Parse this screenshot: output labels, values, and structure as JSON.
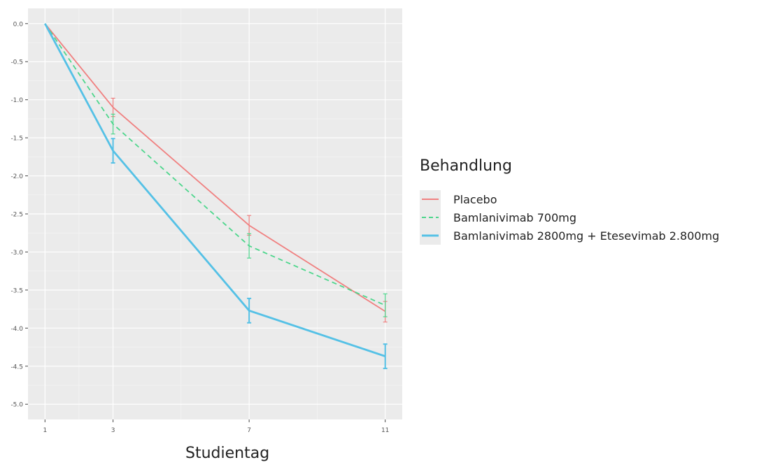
{
  "chart_data": {
    "type": "line",
    "xlabel": "Studientag",
    "ylabel": "",
    "x": [
      1,
      3,
      7,
      11
    ],
    "x_ticks": [
      "1",
      "3",
      "7",
      "11"
    ],
    "y_ticks": [
      "0.0",
      "-0.5",
      "-1.0",
      "-1.5",
      "-2.0",
      "-2.5",
      "-3.0",
      "-3.5",
      "-4.0",
      "-4.5",
      "-5.0"
    ],
    "xlim": [
      0.5,
      11.5
    ],
    "ylim": [
      -5.2,
      0.2
    ],
    "grid": true,
    "legend_title": "Behandlung",
    "legend_position": "right",
    "series": [
      {
        "name": "Placebo",
        "color": "#f08080",
        "dash": "solid",
        "values": [
          0.0,
          -1.1,
          -2.65,
          -3.78
        ],
        "error_low": [
          0.0,
          -1.22,
          -2.78,
          -3.92
        ],
        "error_high": [
          0.0,
          -0.98,
          -2.52,
          -3.65
        ]
      },
      {
        "name": "Bamlanivimab 700mg",
        "color": "#4dd68c",
        "dash": "dashed",
        "values": [
          0.0,
          -1.32,
          -2.92,
          -3.7
        ],
        "error_low": [
          0.0,
          -1.45,
          -3.08,
          -3.85
        ],
        "error_high": [
          0.0,
          -1.19,
          -2.76,
          -3.55
        ]
      },
      {
        "name": "Bamlanivimab 2800mg + Etesevimab 2.800mg",
        "color": "#55c1e6",
        "dash": "solid",
        "values": [
          0.0,
          -1.67,
          -3.77,
          -4.37
        ],
        "error_low": [
          0.0,
          -1.83,
          -3.93,
          -4.53
        ],
        "error_high": [
          0.0,
          -1.51,
          -3.61,
          -4.21
        ]
      }
    ]
  }
}
